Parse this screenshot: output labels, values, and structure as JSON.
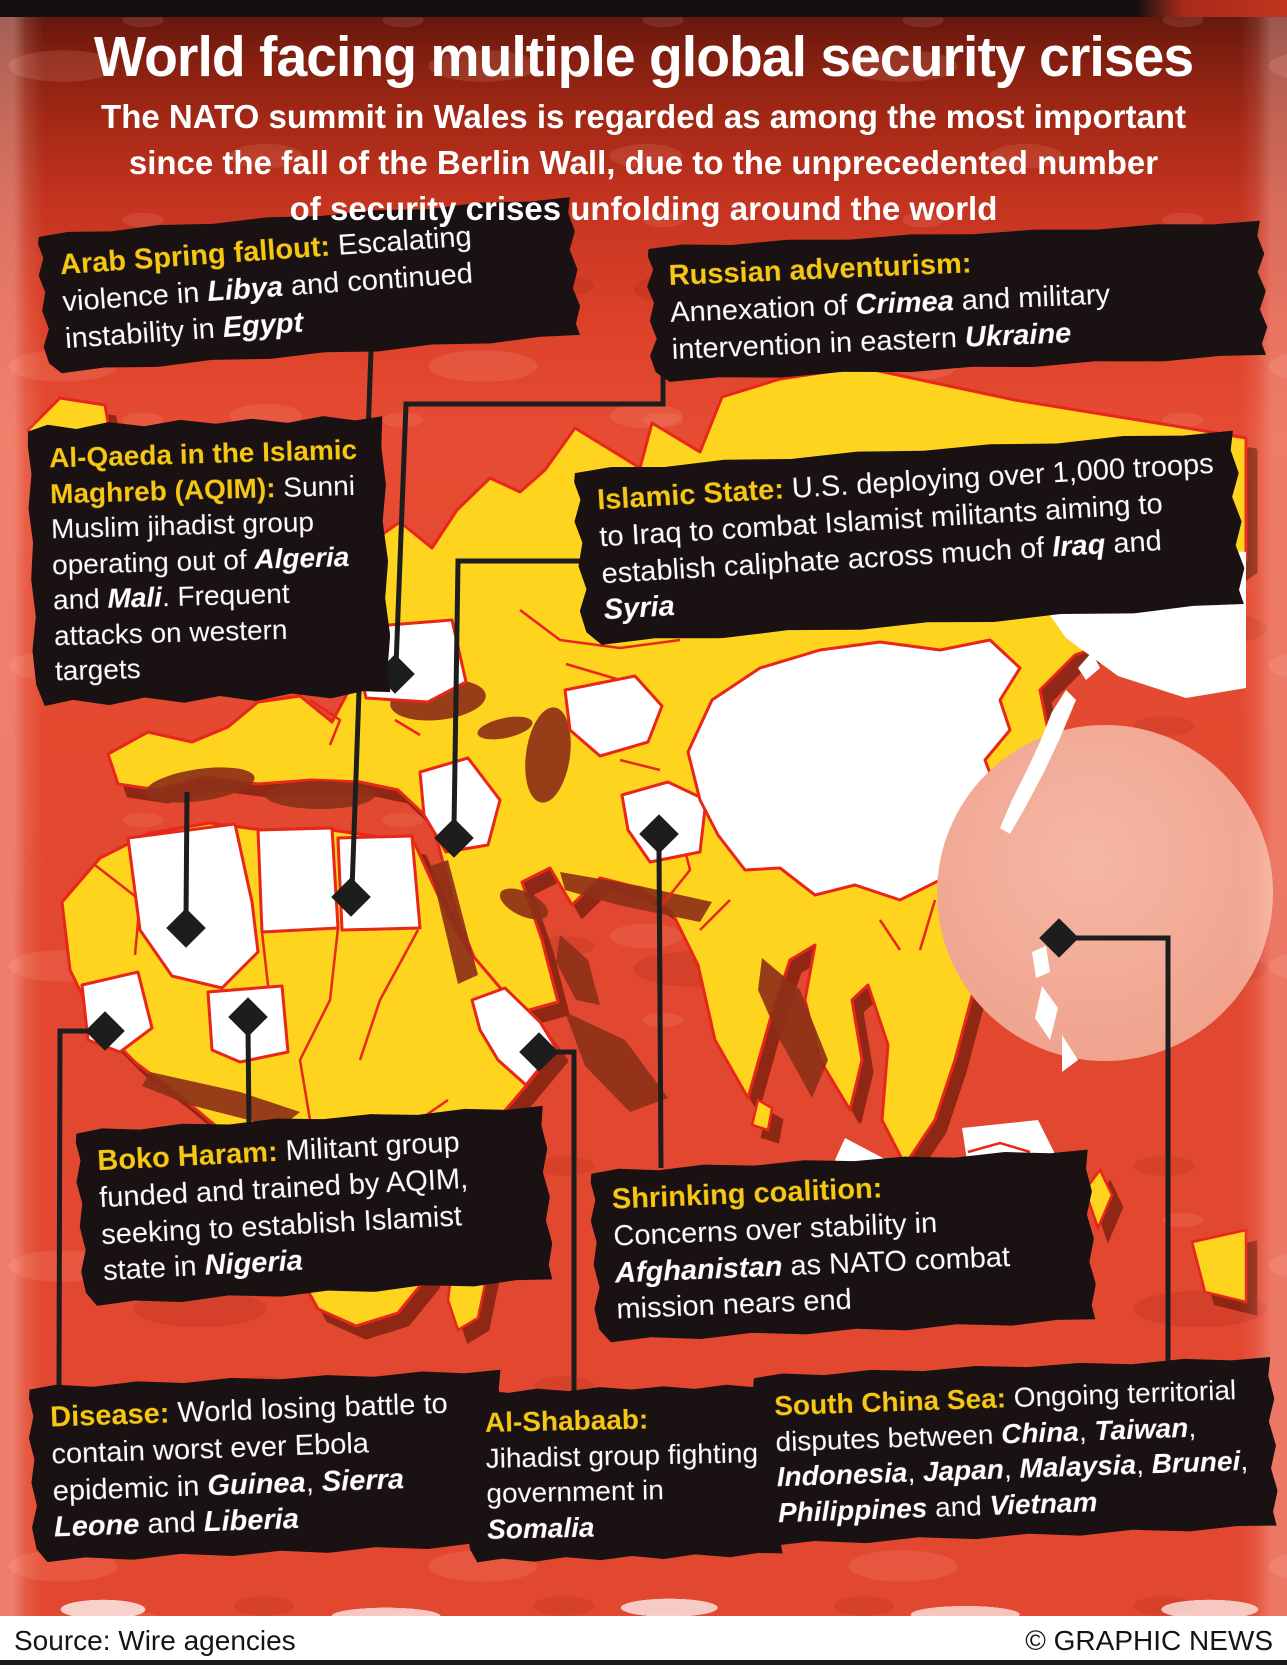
{
  "page": {
    "title": "World facing multiple global security crises",
    "subtitle_lines": [
      "The NATO summit in Wales is regarded as among the most important",
      "since the fall of the Berlin Wall, due to the unprecedented number",
      "of security crises unfolding around the world"
    ],
    "footer": {
      "source": "Source: Wire agencies",
      "credit": "© GRAPHIC NEWS"
    }
  },
  "colors": {
    "background_red": "#e2472f",
    "background_dark_top": "#7e1e10",
    "land_yellow": "#ffd41e",
    "border_red": "#e82619",
    "shadow_maroon": "#8e3019",
    "highlight_white": "#ffffff",
    "south_china_sea_salmon": "#f0a58f",
    "box_black": "#1a1113",
    "heading_yellow": "#f6c713",
    "text_white": "#ffffff",
    "footer_background": "#ffffff",
    "footer_text": "#141414"
  },
  "map": {
    "marker_shape": "diamond-marker-icon",
    "marker_targets": [
      "egypt",
      "ukraine",
      "mali",
      "syria-iraq",
      "afghanistan",
      "nigeria",
      "guinea",
      "somalia",
      "south-china-sea"
    ]
  },
  "callouts": [
    {
      "id": "arab-spring",
      "heading": "Arab Spring fallout:",
      "heading_block": false,
      "segments": [
        {
          "t": " Escalating violence in ",
          "s": "n"
        },
        {
          "t": "Libya",
          "s": "bi"
        },
        {
          "t": " and continued instability in ",
          "s": "n"
        },
        {
          "t": "Egypt",
          "s": "bi"
        }
      ]
    },
    {
      "id": "russian-adventurism",
      "heading": "Russian adventurism:",
      "heading_block": true,
      "segments": [
        {
          "t": "Annexation of ",
          "s": "n"
        },
        {
          "t": "Crimea",
          "s": "bi"
        },
        {
          "t": " and military intervention in eastern ",
          "s": "n"
        },
        {
          "t": "Ukraine",
          "s": "bi"
        }
      ]
    },
    {
      "id": "aqim",
      "heading": "Al-Qaeda in the Islamic Maghreb (AQIM):",
      "heading_block": false,
      "segments": [
        {
          "t": " Sunni Muslim jihadist group operating out of ",
          "s": "n"
        },
        {
          "t": "Algeria",
          "s": "bi"
        },
        {
          "t": " and ",
          "s": "n"
        },
        {
          "t": "Mali",
          "s": "bi"
        },
        {
          "t": ". Frequent attacks on western targets",
          "s": "n"
        }
      ]
    },
    {
      "id": "islamic-state",
      "heading": "Islamic State:",
      "heading_block": false,
      "segments": [
        {
          "t": " U.S. deploying over 1,000 troops to Iraq to combat Islamist militants aiming to establish caliphate across much of ",
          "s": "n"
        },
        {
          "t": "Iraq",
          "s": "bi"
        },
        {
          "t": " and ",
          "s": "n"
        },
        {
          "t": "Syria",
          "s": "bi"
        }
      ]
    },
    {
      "id": "boko-haram",
      "heading": "Boko Haram:",
      "heading_block": false,
      "segments": [
        {
          "t": " Militant group funded and trained by AQIM, seeking to establish Islamist state in ",
          "s": "n"
        },
        {
          "t": "Nigeria",
          "s": "bi"
        }
      ]
    },
    {
      "id": "shrinking-coalition",
      "heading": "Shrinking coalition:",
      "heading_block": true,
      "segments": [
        {
          "t": "Concerns over stability in ",
          "s": "n"
        },
        {
          "t": "Afghanistan",
          "s": "bi"
        },
        {
          "t": " as NATO combat mission nears end",
          "s": "n"
        }
      ]
    },
    {
      "id": "disease",
      "heading": "Disease:",
      "heading_block": false,
      "segments": [
        {
          "t": " World losing battle to contain worst ever Ebola epidemic in ",
          "s": "n"
        },
        {
          "t": "Guinea",
          "s": "bi"
        },
        {
          "t": ", ",
          "s": "n"
        },
        {
          "t": "Sierra Leone",
          "s": "bi"
        },
        {
          "t": " and ",
          "s": "n"
        },
        {
          "t": "Liberia",
          "s": "bi"
        }
      ]
    },
    {
      "id": "al-shabaab",
      "heading": "Al-Shabaab:",
      "heading_block": true,
      "segments": [
        {
          "t": "Jihadist group fighting government in ",
          "s": "n"
        },
        {
          "t": "Somalia",
          "s": "bi"
        }
      ]
    },
    {
      "id": "south-china-sea",
      "heading": "South China Sea:",
      "heading_block": false,
      "segments": [
        {
          "t": " Ongoing territorial disputes between ",
          "s": "n"
        },
        {
          "t": "China",
          "s": "bi"
        },
        {
          "t": ", ",
          "s": "n"
        },
        {
          "t": "Taiwan",
          "s": "bi"
        },
        {
          "t": ", ",
          "s": "n"
        },
        {
          "t": "Indonesia",
          "s": "bi"
        },
        {
          "t": ", ",
          "s": "n"
        },
        {
          "t": "Japan",
          "s": "bi"
        },
        {
          "t": ", ",
          "s": "n"
        },
        {
          "t": "Malaysia",
          "s": "bi"
        },
        {
          "t": ", ",
          "s": "n"
        },
        {
          "t": "Brunei",
          "s": "bi"
        },
        {
          "t": ", ",
          "s": "n"
        },
        {
          "t": "Philippines",
          "s": "bi"
        },
        {
          "t": " and ",
          "s": "n"
        },
        {
          "t": "Vietnam",
          "s": "bi"
        }
      ]
    }
  ]
}
